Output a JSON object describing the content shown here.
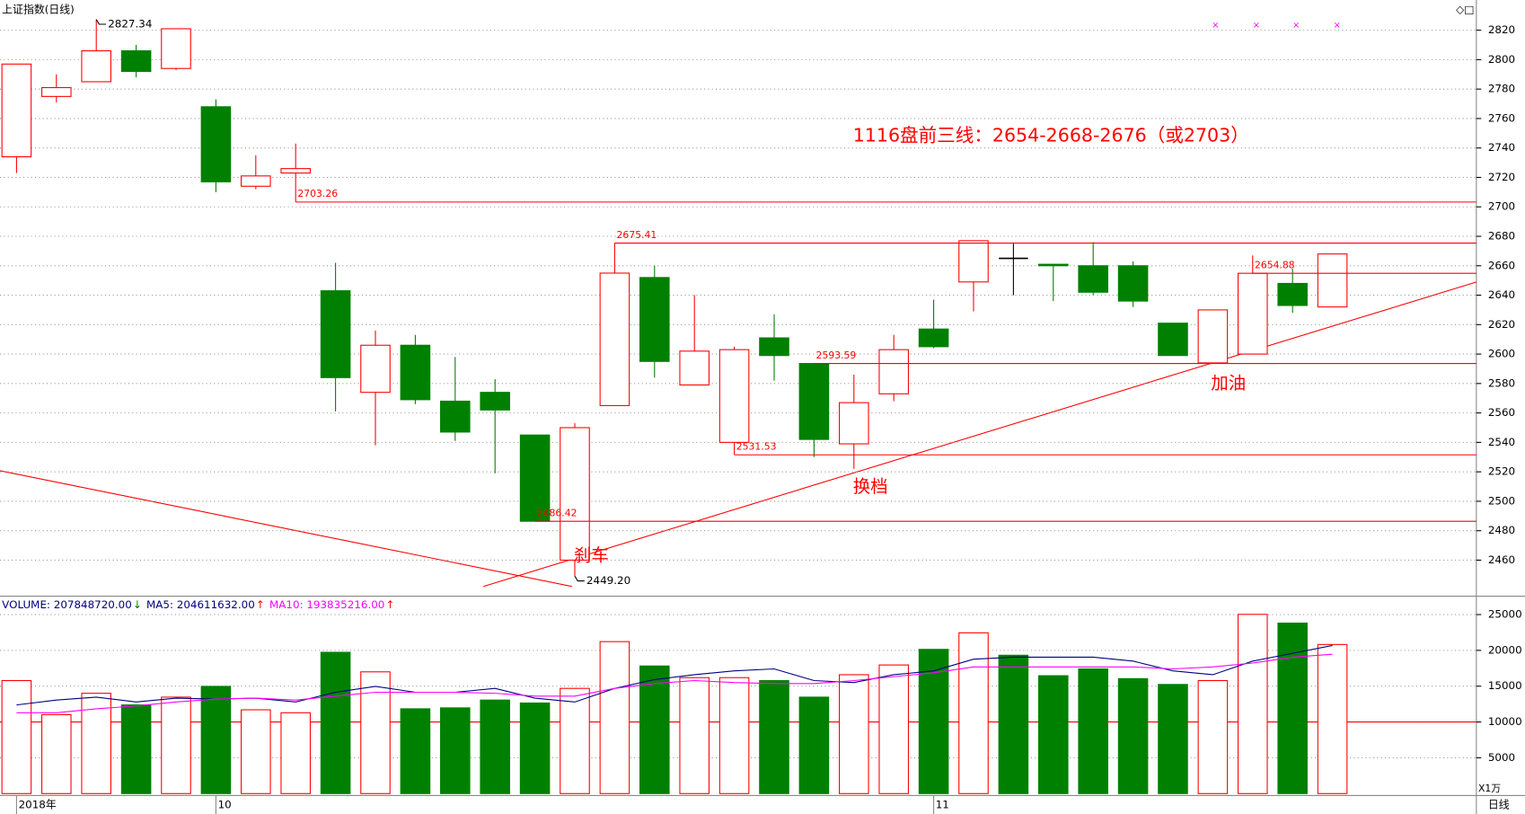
{
  "chart_data": [
    {
      "type": "candlestick",
      "title": "上证指数(日线)",
      "categories": [
        "2018年",
        null,
        null,
        null,
        null,
        "10",
        null,
        null,
        null,
        null,
        null,
        null,
        null,
        null,
        null,
        null,
        null,
        null,
        null,
        null,
        null,
        null,
        null,
        "11",
        null,
        null,
        null,
        null,
        null,
        null,
        null,
        null,
        null,
        null
      ],
      "open": [
        2734,
        2775,
        2785,
        2806,
        2794,
        2768,
        2714,
        2723,
        2643,
        2574,
        2606,
        2568,
        2574,
        2545,
        2460,
        2565,
        2652,
        2579,
        2540,
        2611,
        2593.59,
        2539,
        2573,
        2617,
        2649,
        2665,
        2661,
        2660,
        2660,
        2621,
        2594,
        2600,
        2648,
        2632
      ],
      "high": [
        2797,
        2790,
        2827.34,
        2810,
        2821,
        2773,
        2735,
        2743,
        2662,
        2616,
        2613,
        2598,
        2583,
        2545,
        2553,
        2675.41,
        2660,
        2640,
        2605,
        2627,
        2594,
        2586,
        2613,
        2637,
        2677,
        2675,
        2661,
        2676,
        2663,
        2621,
        2630,
        2667,
        2658,
        2668
      ],
      "low": [
        2723,
        2771,
        2785,
        2788,
        2793,
        2710,
        2712,
        2703.26,
        2561,
        2538,
        2566,
        2541,
        2519,
        2486.42,
        2449.2,
        2565,
        2584,
        2579,
        2531.53,
        2582,
        2530,
        2522,
        2568,
        2604,
        2629,
        2640,
        2636,
        2640,
        2632,
        2599,
        2594,
        2600,
        2628,
        2632
      ],
      "close": [
        2797,
        2781,
        2806,
        2792,
        2821,
        2717,
        2721,
        2726,
        2584,
        2606,
        2569,
        2547,
        2562,
        2486.42,
        2550,
        2655,
        2595,
        2602,
        2603,
        2599,
        2542,
        2567,
        2603,
        2605,
        2677,
        2665,
        2660,
        2642,
        2636,
        2599,
        2630,
        2654.88,
        2633,
        2668
      ],
      "up_color": "#ff0000",
      "down_color": "#008000",
      "flat_color": "#000000",
      "ylim": [
        2436.2,
        2839.2
      ],
      "yticks": [
        2460,
        2480,
        2500,
        2520,
        2540,
        2560,
        2580,
        2600,
        2620,
        2640,
        2660,
        2680,
        2700,
        2720,
        2740,
        2760,
        2780,
        2800,
        2820
      ],
      "grid": true,
      "levels": [
        2703.26,
        2675.41,
        2654.88,
        2593.59,
        2531.53,
        2486.42
      ],
      "extremes": [
        2827.34,
        {
          "value": 2449.2,
          "label": "2449.20"
        }
      ],
      "annotations": [
        "1116盘前三线：2654-2668-2676（或2703）",
        "刹车",
        "换档",
        "加油"
      ],
      "period_label": "日线"
    },
    {
      "type": "bar",
      "series": [
        {
          "name": "VOLUME: 207848720.00",
          "arrow": "↓",
          "arrow_color": "#008000",
          "color": "#000080",
          "values": [
            15780,
            11020,
            14010,
            12380,
            13470,
            14970,
            11700,
            11290,
            19730,
            17000,
            11840,
            11970,
            13060,
            12650,
            14690,
            21220,
            17820,
            16190,
            16190,
            15780,
            13470,
            16600,
            17960,
            20140,
            22450,
            19320,
            16460,
            17410,
            16050,
            15240,
            15780,
            25030,
            23810,
            20820
          ]
        },
        {
          "name": "MA5: 204611632.00",
          "arrow": "↑",
          "arrow_color": "#ff0000",
          "color": "#000080",
          "values": [
            12380,
            13060,
            13470,
            12790,
            13330,
            13200,
            13330,
            12790,
            14150,
            14970,
            14150,
            14150,
            14690,
            13330,
            12790,
            14690,
            15920,
            16600,
            17140,
            17410,
            15780,
            15510,
            16600,
            17140,
            18770,
            19050,
            19050,
            19050,
            18500,
            17140,
            16600,
            18500,
            19590,
            20680
          ]
        },
        {
          "name": "MA10: 193835216.00",
          "arrow": "↑",
          "arrow_color": "#ff0000",
          "color": "#ff00ff",
          "values": [
            11290,
            11290,
            11840,
            12240,
            12790,
            13200,
            13330,
            13060,
            13610,
            14150,
            14150,
            14150,
            14010,
            13610,
            13610,
            14690,
            15370,
            15780,
            15510,
            15370,
            15370,
            15780,
            16330,
            16870,
            17690,
            17690,
            17690,
            17690,
            17690,
            17410,
            17690,
            18230,
            19050,
            19460
          ]
        }
      ],
      "ylim": [
        0,
        27300
      ],
      "yticks": [
        5000,
        10000,
        15000,
        20000,
        25000
      ],
      "grid": true,
      "reference_line": 10000,
      "unit_label": "X1万"
    }
  ]
}
